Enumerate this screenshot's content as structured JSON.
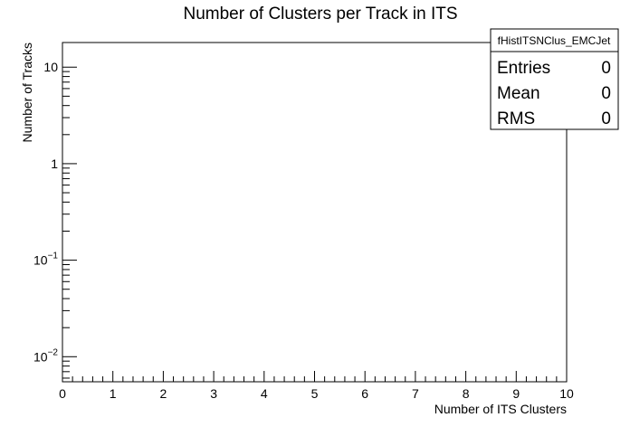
{
  "chart_data": {
    "type": "bar",
    "title": "Number of Clusters per Track in ITS",
    "xlabel": "Number of ITS Clusters",
    "ylabel": "Number of Tracks",
    "xlim": [
      0,
      10
    ],
    "ylim": [
      0.0055,
      18
    ],
    "log_y": true,
    "grid": false,
    "x_ticks": [
      {
        "value": 0,
        "label": "0"
      },
      {
        "value": 1,
        "label": "1"
      },
      {
        "value": 2,
        "label": "2"
      },
      {
        "value": 3,
        "label": "3"
      },
      {
        "value": 4,
        "label": "4"
      },
      {
        "value": 5,
        "label": "5"
      },
      {
        "value": 6,
        "label": "6"
      },
      {
        "value": 7,
        "label": "7"
      },
      {
        "value": 8,
        "label": "8"
      },
      {
        "value": 9,
        "label": "9"
      },
      {
        "value": 10,
        "label": "10"
      }
    ],
    "y_ticks": [
      {
        "value": 0.01,
        "base": "10",
        "exp": "−2"
      },
      {
        "value": 0.1,
        "base": "10",
        "exp": "−1"
      },
      {
        "value": 1,
        "base": "1",
        "exp": ""
      },
      {
        "value": 10,
        "base": "10",
        "exp": ""
      }
    ],
    "series": [],
    "stats_box": {
      "name": "fHistITSNClus_EMCJet",
      "rows": [
        {
          "label": "Entries",
          "value": "0"
        },
        {
          "label": "Mean",
          "value": "0"
        },
        {
          "label": "RMS",
          "value": "0"
        }
      ]
    }
  }
}
